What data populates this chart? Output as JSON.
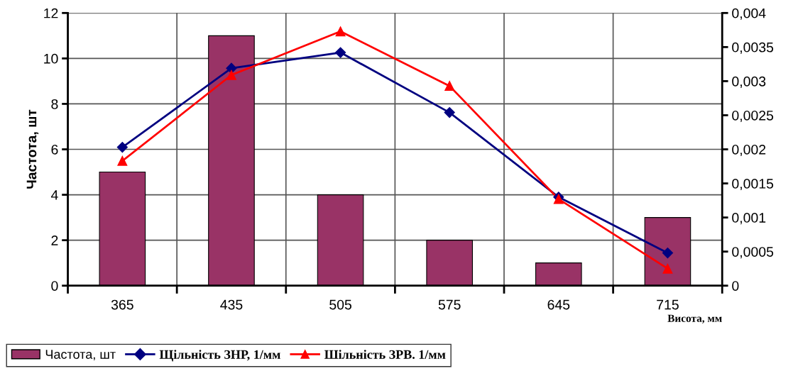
{
  "chart_data": {
    "type": "bar",
    "categories": [
      "365",
      "435",
      "505",
      "575",
      "645",
      "715"
    ],
    "xlabel": "Висота, мм",
    "ylabel": "Частота, шт",
    "ylim": [
      0,
      12
    ],
    "yticks": [
      0,
      2,
      4,
      6,
      8,
      10,
      12
    ],
    "y2lim": [
      0,
      0.004
    ],
    "y2ticks": [
      {
        "value": 0,
        "label": "0"
      },
      {
        "value": 0.0005,
        "label": "0,0005"
      },
      {
        "value": 0.001,
        "label": "0,001"
      },
      {
        "value": 0.0015,
        "label": "0,0015"
      },
      {
        "value": 0.002,
        "label": "0,002"
      },
      {
        "value": 0.0025,
        "label": "0,0025"
      },
      {
        "value": 0.003,
        "label": "0,003"
      },
      {
        "value": 0.0035,
        "label": "0,0035"
      },
      {
        "value": 0.004,
        "label": "0,004"
      }
    ],
    "grid": true,
    "legend": "bottom",
    "series": [
      {
        "name": "Частота, шт",
        "color": "#993366",
        "values": [
          5,
          11,
          4,
          2,
          1,
          3
        ]
      },
      {
        "name": "Щільність ЗНР, 1/мм",
        "type": "line",
        "axis": "y2",
        "marker": "diamond",
        "color": "#000080",
        "values": [
          0.00203,
          0.00319,
          0.00342,
          0.00254,
          0.0013,
          0.00048
        ]
      },
      {
        "name": "Шільність ЗРВ. 1/мм",
        "type": "line",
        "axis": "y2",
        "marker": "triangle",
        "color": "#ff0000",
        "values": [
          0.00183,
          0.00309,
          0.00373,
          0.00293,
          0.00127,
          0.00025
        ]
      }
    ]
  }
}
